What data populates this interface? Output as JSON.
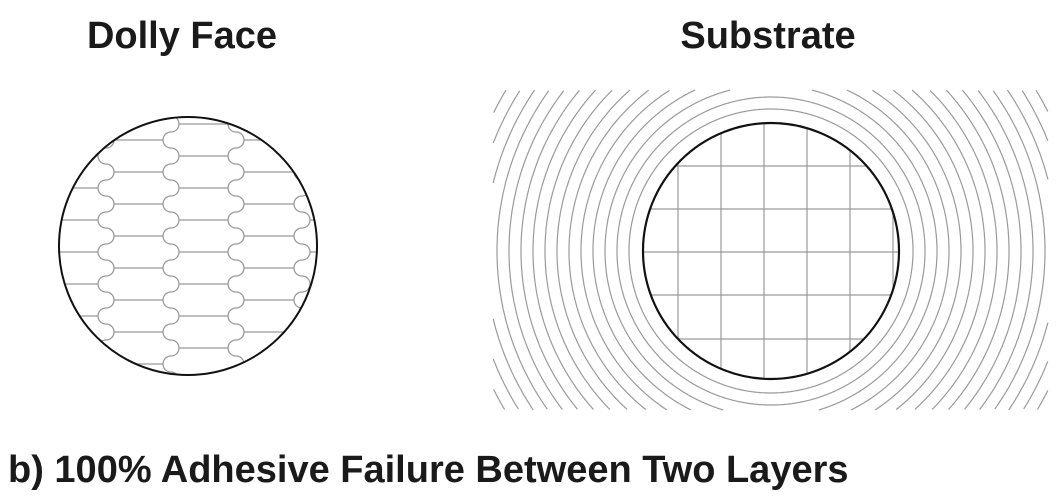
{
  "labels": {
    "dolly_face": "Dolly Face",
    "substrate": "Substrate",
    "caption": "b) 100% Adhesive Failure Between Two Layers"
  },
  "colors": {
    "outline": "#111111",
    "pattern": "#9a9a9a"
  }
}
